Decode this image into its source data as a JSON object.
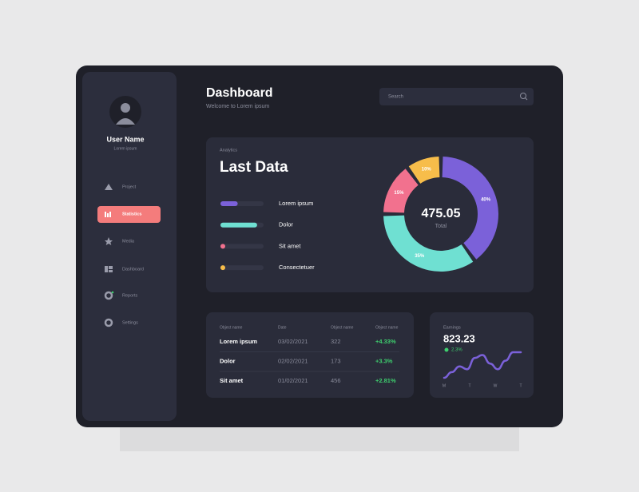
{
  "sidebar": {
    "user_name": "User Name",
    "user_subtitle": "Lorem ipsum",
    "nav": [
      "Project",
      "Statistics",
      "Media",
      "Dashboard",
      "Reports",
      "Settings"
    ],
    "active": 1
  },
  "header": {
    "title": "Dashboard",
    "subtitle": "Welcome to Lorem ipsum",
    "search_placeholder": "Search"
  },
  "analytics": {
    "label": "Analytics",
    "title": "Last Data",
    "legend": [
      {
        "label": "Lorem ipsum",
        "fill": 40
      },
      {
        "label": "Dolor",
        "fill": 85
      },
      {
        "label": "Sit amet",
        "fill": 10
      },
      {
        "label": "Consectetuer",
        "fill": 10
      }
    ],
    "donut": {
      "type": "pie",
      "values": [
        40,
        35,
        15,
        10
      ],
      "value_labels": [
        "40%",
        "35%",
        "15%",
        "10%"
      ],
      "colors": [
        "#7b61d9",
        "#6fe0d2",
        "#f2718e",
        "#f7bd4a"
      ],
      "total": "475.05",
      "total_label": "Total"
    }
  },
  "table": {
    "headers": [
      "Object name",
      "Date",
      "Object name",
      "Object name"
    ],
    "rows": [
      [
        "Lorem ipsum",
        "03/02/2021",
        "322",
        "+4.33%"
      ],
      [
        "Dolor",
        "02/02/2021",
        "173",
        "+3.3%"
      ],
      [
        "Sit amet",
        "01/02/2021",
        "456",
        "+2.81%"
      ]
    ]
  },
  "earnings": {
    "label": "Earnings",
    "amount": "823.23",
    "change": "2.3%",
    "trend": [
      1,
      3,
      5,
      4,
      8,
      9,
      6,
      4,
      7,
      10,
      10
    ],
    "trend_color": "#7b61d9",
    "axis_labels": [
      "M",
      "T",
      "W",
      "T"
    ]
  }
}
